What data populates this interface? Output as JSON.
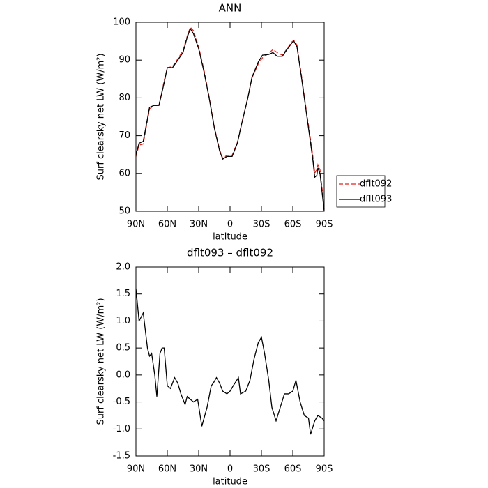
{
  "chart_data": [
    {
      "type": "line",
      "title": "ANN",
      "xlabel": "latitude",
      "ylabel": "Surf clearsky net LW (W/m²)",
      "x": [
        90,
        87,
        83,
        80,
        77,
        73,
        68,
        63,
        60,
        55,
        50,
        45,
        41,
        38,
        35,
        30,
        25,
        20,
        15,
        10,
        7,
        3,
        -2,
        -7,
        -11,
        -17,
        -21,
        -27,
        -31,
        -37,
        -41,
        -45,
        -50,
        -55,
        -59,
        -61,
        -64,
        -68,
        -72,
        -76,
        -79,
        -81,
        -83,
        -84,
        -86,
        -88,
        -90
      ],
      "series": [
        {
          "name": "dflt092",
          "color": "#e8231c",
          "linestyle": "dashed",
          "values": [
            64.5,
            67.5,
            67.8,
            72.5,
            77,
            78,
            78,
            84.5,
            88,
            88.3,
            90.3,
            92.5,
            96.3,
            98.7,
            97.8,
            93.5,
            87.5,
            80.3,
            72.2,
            66.3,
            64,
            64.8,
            64.8,
            68.2,
            73.2,
            80,
            85.3,
            89,
            90.6,
            91.8,
            92.8,
            92,
            91.3,
            93.2,
            94.8,
            95.2,
            94,
            86.5,
            78.5,
            70.8,
            65,
            60.1,
            61,
            62.3,
            61,
            56,
            50.5
          ]
        },
        {
          "name": "dflt093",
          "color": "#000000",
          "linestyle": "solid",
          "values": [
            65,
            68,
            68.5,
            73,
            77.5,
            78,
            78,
            84,
            88,
            88,
            90,
            92,
            96,
            98.3,
            97,
            93,
            87,
            80,
            72,
            66,
            63.8,
            64.5,
            64.5,
            68,
            73,
            80,
            85.5,
            89.5,
            91.3,
            91.5,
            92,
            91,
            91,
            93,
            94.5,
            95,
            93.5,
            86,
            78,
            70,
            64,
            59,
            59.5,
            61.5,
            60,
            55,
            50
          ]
        }
      ],
      "xlim": [
        90,
        -90
      ],
      "xticks": [
        {
          "value": 90,
          "label": "90N"
        },
        {
          "value": 60,
          "label": "60N"
        },
        {
          "value": 30,
          "label": "30N"
        },
        0,
        {
          "value": -30,
          "label": "30S"
        },
        {
          "value": -60,
          "label": "60S"
        },
        {
          "value": -90,
          "label": "90S"
        }
      ],
      "ylim": [
        50,
        100
      ],
      "yticks": [
        50,
        60,
        70,
        80,
        90,
        100
      ],
      "legend": "right"
    },
    {
      "type": "line",
      "title": "dflt093 – dflt092",
      "xlabel": "latitude",
      "ylabel": "Surf clearsky net LW (W/m²)",
      "x": [
        90,
        87,
        83,
        79,
        77,
        75,
        72,
        70,
        67,
        65,
        63,
        60,
        57,
        53,
        50,
        47,
        43,
        41,
        38,
        35,
        31,
        27,
        22,
        18,
        16,
        13,
        10,
        7,
        3,
        0,
        -3,
        -8,
        -10,
        -15,
        -19,
        -23,
        -27,
        -30,
        -33,
        -37,
        -40,
        -44,
        -48,
        -52,
        -56,
        -60,
        -63,
        -67,
        -71,
        -75,
        -77,
        -81,
        -84,
        -88,
        -90
      ],
      "values": [
        1.6,
        1.0,
        1.15,
        0.5,
        0.35,
        0.4,
        0.0,
        -0.4,
        0.4,
        0.5,
        0.5,
        -0.2,
        -0.25,
        -0.05,
        -0.15,
        -0.35,
        -0.55,
        -0.4,
        -0.45,
        -0.5,
        -0.45,
        -0.95,
        -0.6,
        -0.2,
        -0.15,
        -0.05,
        -0.15,
        -0.3,
        -0.35,
        -0.3,
        -0.2,
        -0.05,
        -0.35,
        -0.3,
        -0.1,
        0.3,
        0.6,
        0.7,
        0.4,
        -0.1,
        -0.6,
        -0.85,
        -0.6,
        -0.35,
        -0.35,
        -0.3,
        -0.1,
        -0.5,
        -0.75,
        -0.8,
        -1.1,
        -0.85,
        -0.75,
        -0.8,
        -0.85
      ],
      "color": "#000000",
      "linestyle": "solid",
      "xlim": [
        90,
        -90
      ],
      "xticks": [
        {
          "value": 90,
          "label": "90N"
        },
        {
          "value": 60,
          "label": "60N"
        },
        {
          "value": 30,
          "label": "30N"
        },
        0,
        {
          "value": -30,
          "label": "30S"
        },
        {
          "value": -60,
          "label": "60S"
        },
        {
          "value": -90,
          "label": "90S"
        }
      ],
      "ylim": [
        -1.5,
        2.0
      ],
      "yticks": [
        -1.5,
        {
          "value": -1,
          "label": "-1.0"
        },
        -0.5,
        {
          "value": 0,
          "label": "0.0"
        },
        0.5,
        {
          "value": 1,
          "label": "1.0"
        },
        1.5,
        {
          "value": 2,
          "label": "2.0"
        }
      ]
    }
  ]
}
